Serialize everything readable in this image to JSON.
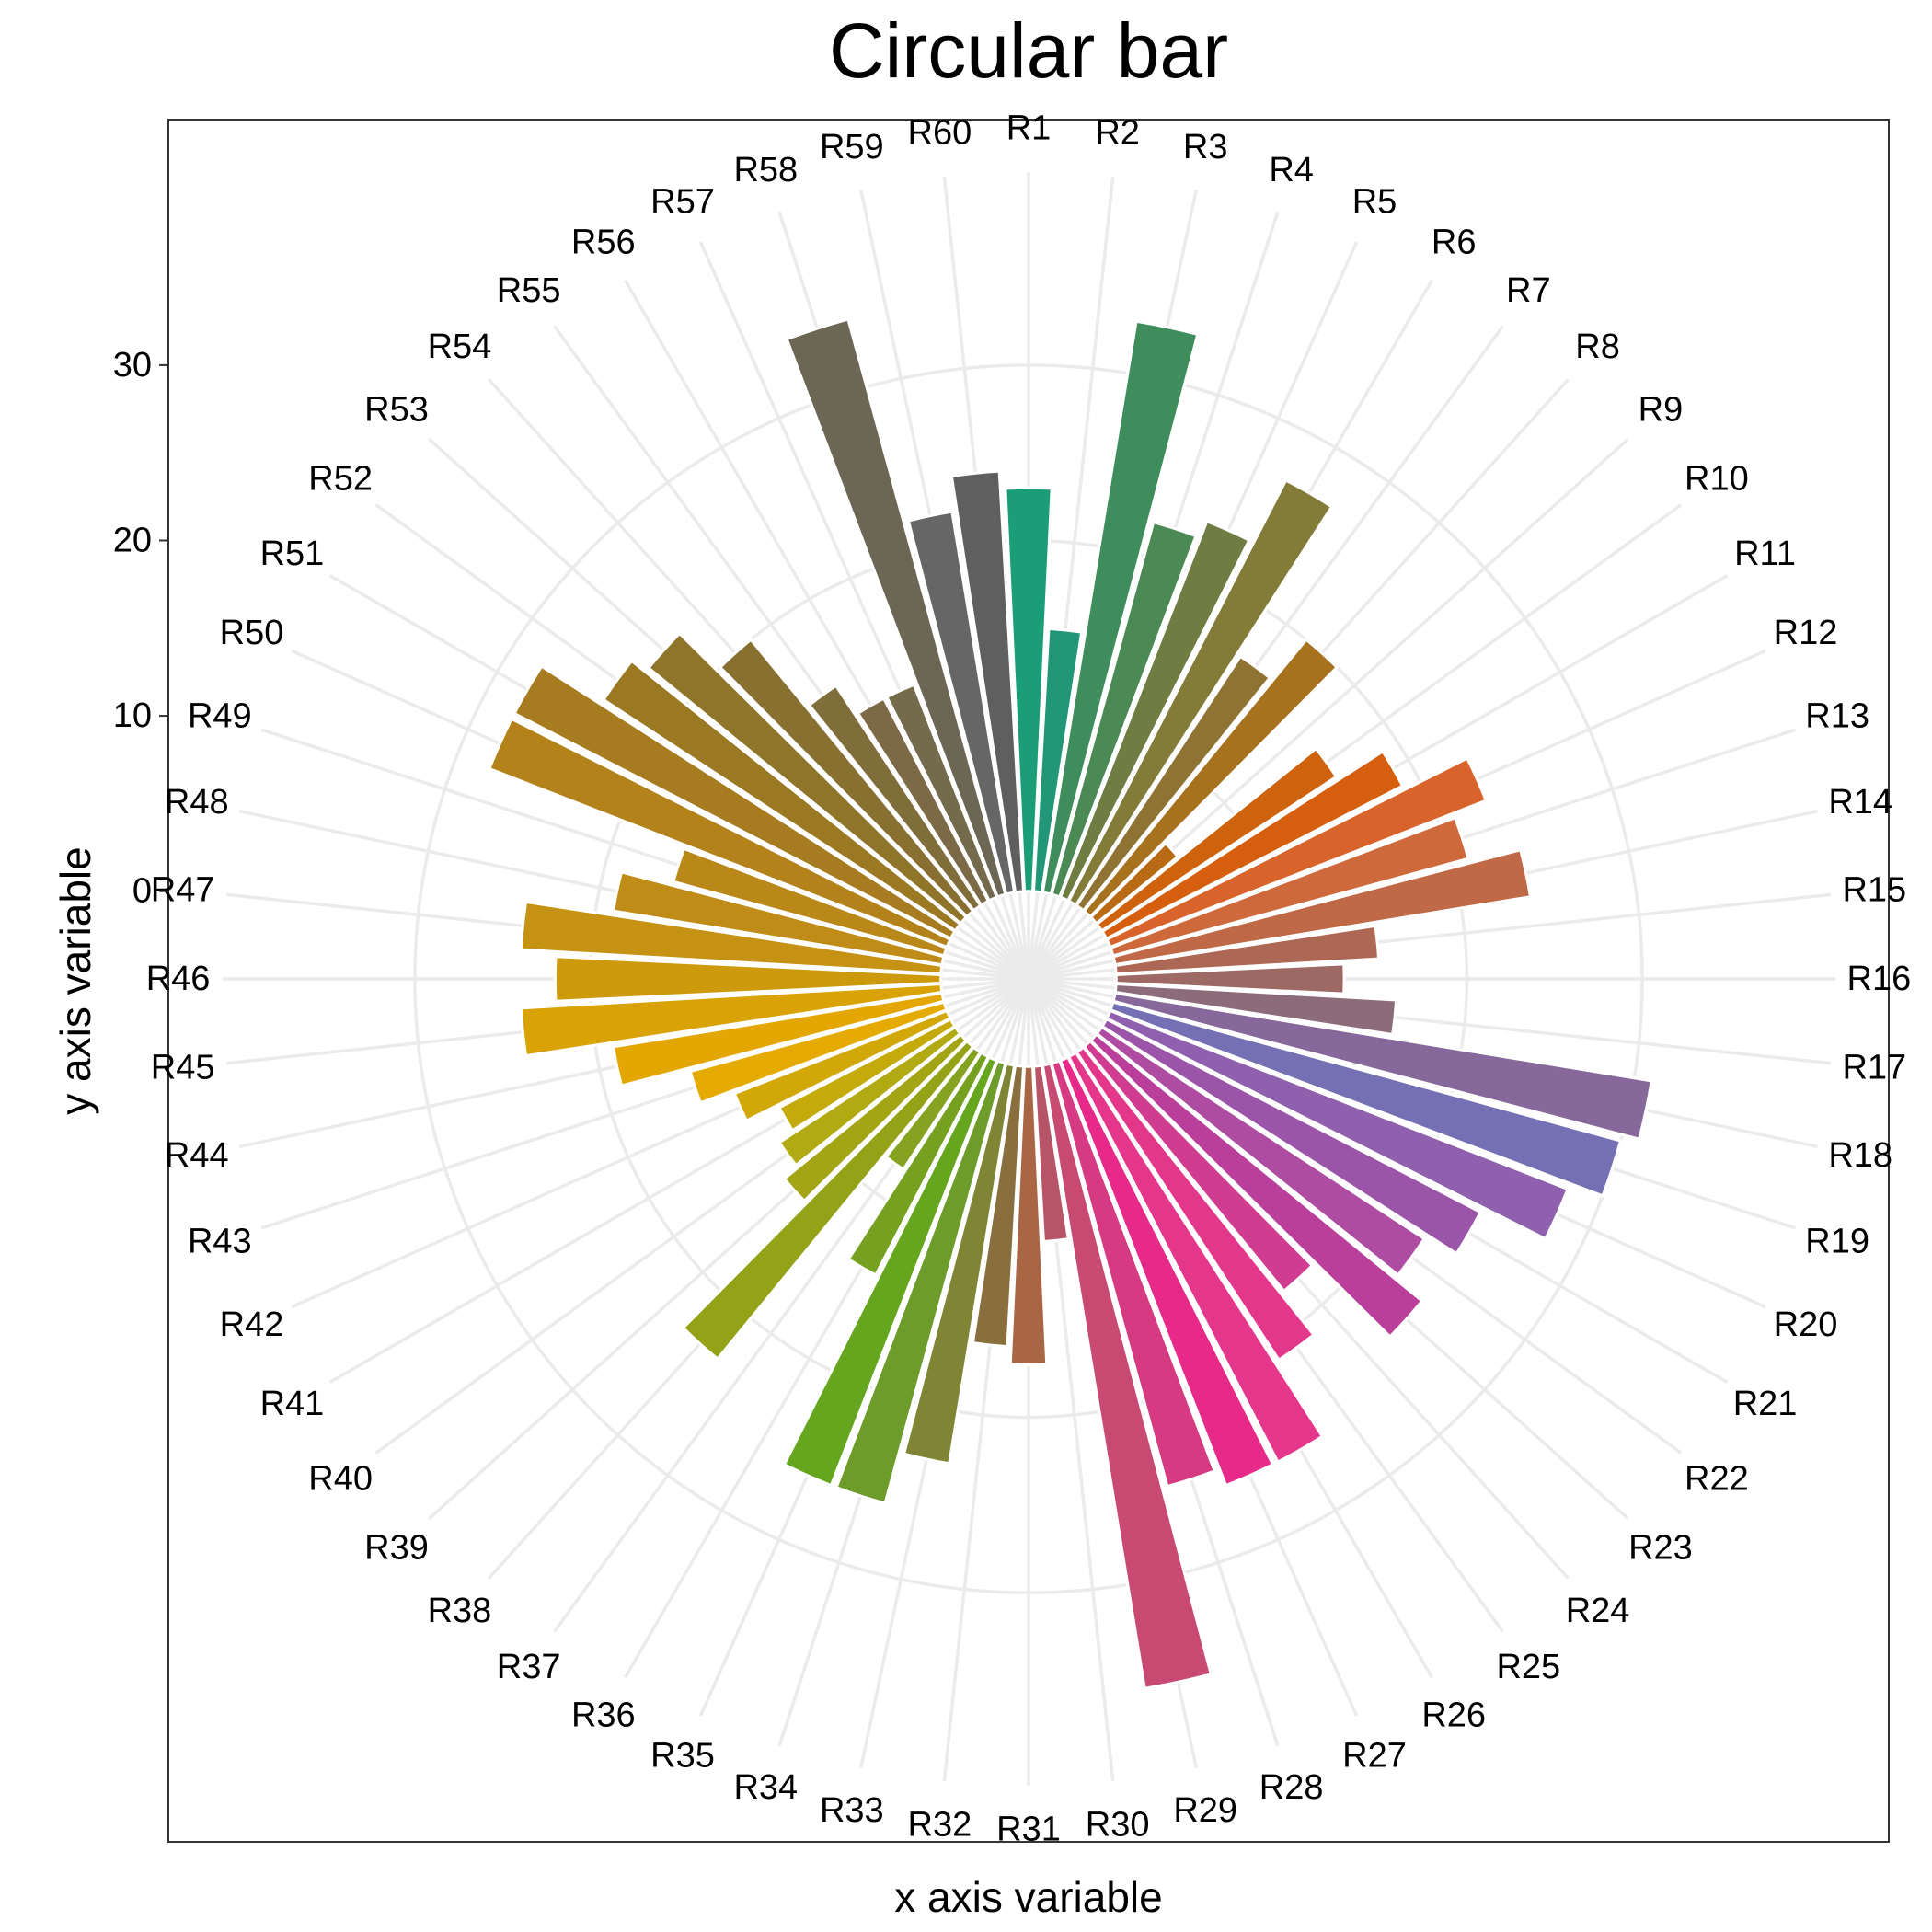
{
  "chart_data": {
    "type": "bar",
    "coordinates": "polar",
    "title": "Circular bar",
    "xlabel": "x axis variable",
    "ylabel": "y axis variable",
    "ylim": [
      -5,
      45
    ],
    "y_ticks": [
      0,
      10,
      20,
      30
    ],
    "grid": true,
    "legend": "none",
    "categories": [
      "R1",
      "R2",
      "R3",
      "R4",
      "R5",
      "R6",
      "R7",
      "R8",
      "R9",
      "R10",
      "R11",
      "R12",
      "R13",
      "R14",
      "R15",
      "R16",
      "R17",
      "R18",
      "R19",
      "R20",
      "R21",
      "R22",
      "R23",
      "R24",
      "R25",
      "R26",
      "R27",
      "R28",
      "R29",
      "R30",
      "R31",
      "R32",
      "R33",
      "R34",
      "R35",
      "R36",
      "R37",
      "R38",
      "R39",
      "R40",
      "R41",
      "R42",
      "R43",
      "R44",
      "R45",
      "R46",
      "R47",
      "R48",
      "R49",
      "R50",
      "R51",
      "R52",
      "R53",
      "R54",
      "R55",
      "R56",
      "R57",
      "R58",
      "R59",
      "R60"
    ],
    "values": [
      23,
      15,
      33,
      22,
      23,
      27,
      17,
      20,
      6,
      16,
      19,
      23,
      21,
      24,
      15,
      13,
      16,
      31,
      30,
      28,
      24,
      22,
      24,
      18,
      21,
      26,
      26,
      25,
      36,
      10,
      17,
      16,
      23,
      26,
      26,
      14,
      8,
      23,
      13,
      12,
      11,
      13,
      15,
      19,
      24,
      22,
      24,
      19,
      16,
      28,
      28,
      24,
      23,
      20,
      15,
      13,
      13,
      34,
      22,
      24
    ],
    "colors": [
      "#1b9e77",
      "#229777",
      "#3f8d5d",
      "#4b8a54",
      "#6f7d43",
      "#827c38",
      "#8f7332",
      "#a6721e",
      "#b86a14",
      "#cf620c",
      "#d55f0e",
      "#d9642b",
      "#ce693c",
      "#c06946",
      "#ad6855",
      "#9c6964",
      "#8c6c7a",
      "#86699a",
      "#7570b3",
      "#8e60ad",
      "#9a55a8",
      "#ad4ca1",
      "#ba3f9b",
      "#cf3c90",
      "#e3378c",
      "#e4378b",
      "#e7298a",
      "#d53a82",
      "#c84a72",
      "#b75468",
      "#a86645",
      "#8a6f3e",
      "#7f8535",
      "#6e9c2b",
      "#66a61e",
      "#75a020",
      "#85a220",
      "#94a218",
      "#a4a515",
      "#b2aa12",
      "#c4aa0a",
      "#d2a708",
      "#e6ab02",
      "#e3a603",
      "#d9a205",
      "#cd9a0e",
      "#c59214",
      "#bf8c17",
      "#b98818",
      "#b3821b",
      "#a77b1f",
      "#9b7822",
      "#8e7529",
      "#887031",
      "#7f6d3a",
      "#7b6a45",
      "#746a4c",
      "#6c6655",
      "#666666",
      "#5f5f5f"
    ]
  }
}
